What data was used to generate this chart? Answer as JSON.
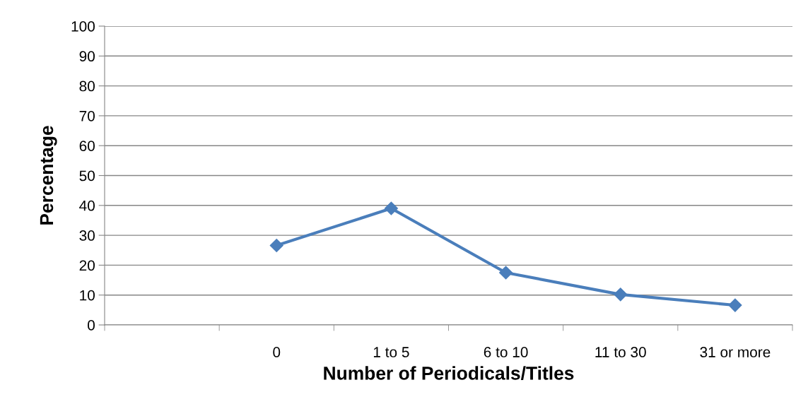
{
  "chart_data": {
    "type": "line",
    "xlabel": "Number of Periodicals/Titles",
    "ylabel": "Percentage",
    "categories": [
      null,
      "0",
      "1 to 5",
      "6 to 10",
      "11 to 30",
      "31 or more"
    ],
    "series": [
      {
        "color": "#4a7ebb",
        "values": [
          null,
          26.6,
          39,
          17.5,
          10.2,
          6.6
        ]
      }
    ],
    "ylim": [
      0,
      100
    ],
    "yticks": [
      0,
      10,
      20,
      30,
      40,
      50,
      60,
      70,
      80,
      90,
      100
    ],
    "grid": "y",
    "marker": "diamond",
    "line_style": "solid"
  }
}
